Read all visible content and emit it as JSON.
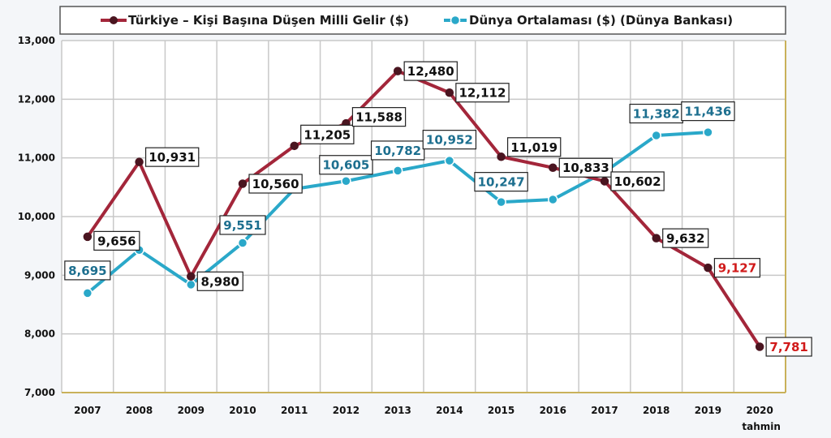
{
  "colors": {
    "turkey": "#a3263a",
    "turkey_marker": "#4a1520",
    "world": "#2aa8c9",
    "world_label_text": "#1d6f8f",
    "estimate_label_text": "#d11a1a",
    "grid": "#c8c8c8",
    "plot_border": "#c9b15a"
  },
  "chart_data": {
    "type": "line",
    "categories": [
      "2007",
      "2008",
      "2009",
      "2010",
      "2011",
      "2012",
      "2013",
      "2014",
      "2015",
      "2016",
      "2017",
      "2018",
      "2019",
      "2020"
    ],
    "category_sublabels": [
      "",
      "",
      "",
      "",
      "",
      "",
      "",
      "",
      "",
      "",
      "",
      "",
      "",
      "tahmin"
    ],
    "ylim": [
      7000,
      13000
    ],
    "yticks": [
      7000,
      8000,
      9000,
      10000,
      11000,
      12000,
      13000
    ],
    "ytick_labels": [
      "7,000",
      "8,000",
      "9,000",
      "10,000",
      "11,000",
      "12,000",
      "13,000"
    ],
    "grid": true,
    "legend_position": "top",
    "series": [
      {
        "key": "turkey",
        "name": "Türkiye – Kişi Başına Düşen Milli Gelir ($)",
        "values": [
          9656,
          10931,
          8980,
          10560,
          11205,
          11588,
          12480,
          12112,
          11019,
          10833,
          10602,
          9632,
          9127,
          7781
        ],
        "labels": [
          "9,656",
          "10,931",
          "8,980",
          "10,560",
          "11,205",
          "11,588",
          "12,480",
          "12,112",
          "11,019",
          "10,833",
          "10,602",
          "9,632",
          "9,127",
          "7,781"
        ]
      },
      {
        "key": "world",
        "name": "Dünya Ortalaması ($) (Dünya Bankası)",
        "values": [
          8695,
          9430,
          8840,
          9551,
          10470,
          10605,
          10782,
          10952,
          10247,
          10290,
          10760,
          11382,
          11436,
          null
        ],
        "labels": [
          "8,695",
          "",
          "",
          "9,551",
          "",
          "10,605",
          "10,782",
          "10,952",
          "10,247",
          "",
          "",
          "11,382",
          "11,436",
          ""
        ]
      }
    ]
  }
}
